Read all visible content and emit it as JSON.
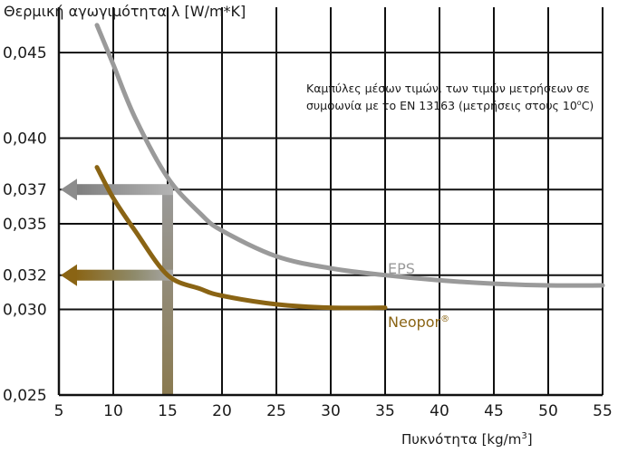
{
  "chart_data": {
    "type": "line",
    "title": "",
    "ylabel": "Θερμική αγωγιμότητα λ [W/m*K]",
    "xlabel_main": "Πυκνότητα [kg/m",
    "xlabel_sup": "3",
    "xlabel_end": "]",
    "xlim": [
      5,
      55
    ],
    "ylim": [
      0.025,
      0.047
    ],
    "x_ticks": [
      5,
      10,
      15,
      20,
      25,
      30,
      35,
      40,
      45,
      50,
      55
    ],
    "y_ticks": [
      0.025,
      0.03,
      0.032,
      0.035,
      0.037,
      0.04,
      0.045
    ],
    "y_tick_labels": [
      "0,025",
      "0,030",
      "0,032",
      "0,035",
      "0,037",
      "0,040",
      "0,045"
    ],
    "grid": true,
    "annotation": {
      "line1": "Καμπύλες μέσων τιμών, των τιμών μετρήσεων σε",
      "line2_pre": "συμφωνία με το EN 13163 (μετρήσεις στους 10",
      "line2_sup": "o",
      "line2_post": "C)"
    },
    "series": [
      {
        "name": "EPS",
        "color": "#9a9a9a",
        "x": [
          8.5,
          10,
          12,
          15,
          18,
          20,
          25,
          30,
          35,
          40,
          45,
          50,
          55
        ],
        "y": [
          0.0466,
          0.0443,
          0.0412,
          0.0377,
          0.0356,
          0.0346,
          0.0331,
          0.0324,
          0.032,
          0.0317,
          0.0315,
          0.0314,
          0.0314
        ]
      },
      {
        "name": "Neopor",
        "name_sup": "®",
        "color": "#8a6414",
        "x": [
          8.5,
          10,
          12,
          15,
          18,
          20,
          25,
          30,
          35
        ],
        "y": [
          0.0383,
          0.0365,
          0.0346,
          0.032,
          0.0312,
          0.0308,
          0.0303,
          0.0301,
          0.0301
        ]
      }
    ],
    "reference_arrows": [
      {
        "from_x": 15,
        "to_x": 5,
        "y": 0.037,
        "color": "#8c8c8c"
      },
      {
        "from_x": 15,
        "to_x": 5,
        "y": 0.032,
        "color": "#8a6414"
      }
    ],
    "reference_x": 15
  }
}
